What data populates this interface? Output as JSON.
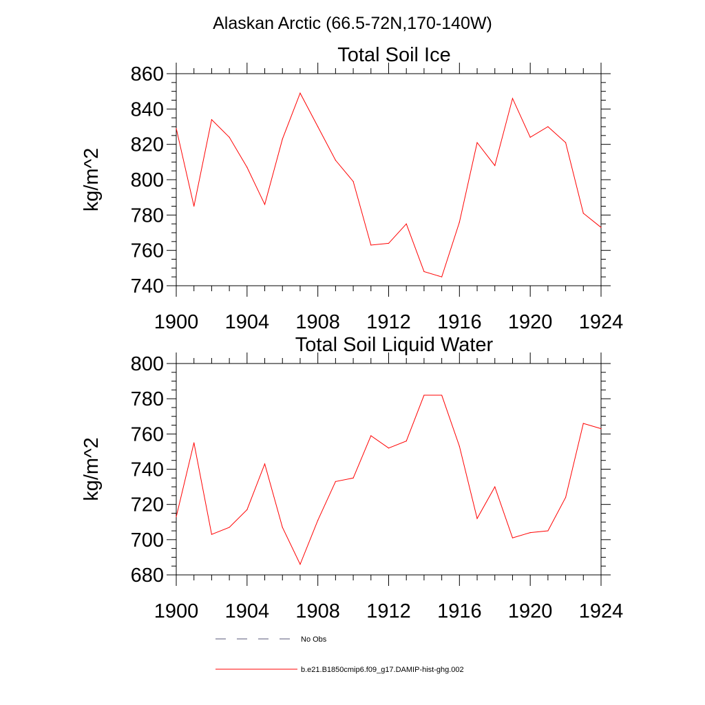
{
  "figure": {
    "title": "Alaskan Arctic (66.5-72N,170-140W)"
  },
  "chart_data": [
    {
      "type": "line",
      "title": "Total Soil Ice",
      "xlabel": "",
      "ylabel": "kg/m^2",
      "xlim": [
        1900,
        1924
      ],
      "ylim": [
        740,
        860
      ],
      "xticks": [
        1900,
        1904,
        1908,
        1912,
        1916,
        1920,
        1924
      ],
      "yticks": [
        740,
        760,
        780,
        800,
        820,
        840,
        860
      ],
      "x_minor_step": 1,
      "y_minor_step": 5,
      "x": [
        1900,
        1901,
        1902,
        1903,
        1904,
        1905,
        1906,
        1907,
        1908,
        1909,
        1910,
        1911,
        1912,
        1913,
        1914,
        1915,
        1916,
        1917,
        1918,
        1919,
        1920,
        1921,
        1922,
        1923,
        1924
      ],
      "series": [
        {
          "name": "b.e21.B1850cmip6.f09_g17.DAMIP-hist-ghg.002",
          "color": "#ff0000",
          "values": [
            829,
            785,
            834,
            824,
            807,
            786,
            823,
            849,
            830,
            811,
            799,
            763,
            764,
            775,
            748,
            745,
            776,
            821,
            808,
            846,
            824,
            830,
            821,
            781,
            773
          ]
        }
      ]
    },
    {
      "type": "line",
      "title": "Total Soil Liquid Water",
      "xlabel": "",
      "ylabel": "kg/m^2",
      "xlim": [
        1900,
        1924
      ],
      "ylim": [
        680,
        800
      ],
      "xticks": [
        1900,
        1904,
        1908,
        1912,
        1916,
        1920,
        1924
      ],
      "yticks": [
        680,
        700,
        720,
        740,
        760,
        780,
        800
      ],
      "x_minor_step": 1,
      "y_minor_step": 5,
      "x": [
        1900,
        1901,
        1902,
        1903,
        1904,
        1905,
        1906,
        1907,
        1908,
        1909,
        1910,
        1911,
        1912,
        1913,
        1914,
        1915,
        1916,
        1917,
        1918,
        1919,
        1920,
        1921,
        1922,
        1923,
        1924
      ],
      "series": [
        {
          "name": "b.e21.B1850cmip6.f09_g17.DAMIP-hist-ghg.002",
          "color": "#ff0000",
          "values": [
            713,
            755,
            703,
            707,
            717,
            743,
            707,
            686,
            711,
            733,
            735,
            759,
            752,
            756,
            782,
            782,
            753,
            712,
            730,
            701,
            704,
            705,
            724,
            766,
            763
          ]
        }
      ]
    }
  ],
  "legend": {
    "placement": "bottom",
    "items": [
      {
        "label": "No Obs",
        "color": "#555577",
        "dashed": true
      },
      {
        "label": "b.e21.B1850cmip6.f09_g17.DAMIP-hist-ghg.002",
        "color": "#ff0000",
        "dashed": false
      }
    ]
  }
}
